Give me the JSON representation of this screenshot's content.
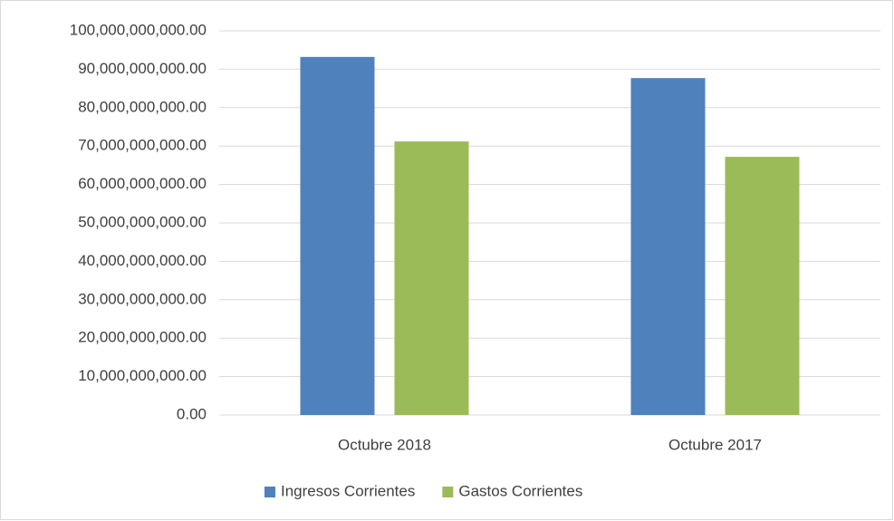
{
  "chart_data": {
    "type": "bar",
    "categories": [
      "Octubre 2018",
      "Octubre 2017"
    ],
    "series": [
      {
        "name": "Ingresos Corrientes",
        "color": "#4f81bd",
        "values": [
          93200000000,
          87700000000
        ]
      },
      {
        "name": "Gastos Corrientes",
        "color": "#9bbb59",
        "values": [
          71200000000,
          67200000000
        ]
      }
    ],
    "ylim": [
      0,
      100000000000
    ],
    "yticks": [
      {
        "value": 0,
        "label": "0.00"
      },
      {
        "value": 10000000000,
        "label": "10,000,000,000.00"
      },
      {
        "value": 20000000000,
        "label": "20,000,000,000.00"
      },
      {
        "value": 30000000000,
        "label": "30,000,000,000.00"
      },
      {
        "value": 40000000000,
        "label": "40,000,000,000.00"
      },
      {
        "value": 50000000000,
        "label": "50,000,000,000.00"
      },
      {
        "value": 60000000000,
        "label": "60,000,000,000.00"
      },
      {
        "value": 70000000000,
        "label": "70,000,000,000.00"
      },
      {
        "value": 80000000000,
        "label": "80,000,000,000.00"
      },
      {
        "value": 90000000000,
        "label": "90,000,000,000.00"
      },
      {
        "value": 100000000000,
        "label": "100,000,000,000.00"
      }
    ],
    "grid": true,
    "legend": "bottom"
  }
}
